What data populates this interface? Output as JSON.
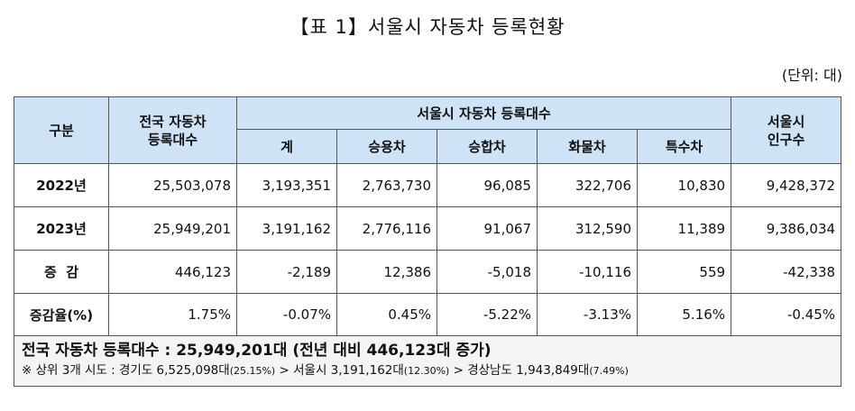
{
  "title": "【표 1】서울시 자동차 등록현황",
  "unit": "(단위: 대)",
  "headers": {
    "category": "구분",
    "national": "전국 자동차\n등록대수",
    "seoul_group": "서울시 자동차 등록대수",
    "seoul_cols": [
      "계",
      "승용차",
      "승합차",
      "화물차",
      "특수차"
    ],
    "population": "서울시\n인구수"
  },
  "rows": [
    {
      "label": "2022년",
      "values": [
        "25,503,078",
        "3,193,351",
        "2,763,730",
        "96,085",
        "322,706",
        "10,830",
        "9,428,372"
      ]
    },
    {
      "label": "2023년",
      "values": [
        "25,949,201",
        "3,191,162",
        "2,776,116",
        "91,067",
        "312,590",
        "11,389",
        "9,386,034"
      ]
    },
    {
      "label": "증  감",
      "values": [
        "446,123",
        "-2,189",
        "12,386",
        "-5,018",
        "-10,116",
        "559",
        "-42,338"
      ]
    },
    {
      "label": "증감율(%)",
      "values": [
        "1.75%",
        "-0.07%",
        "0.45%",
        "-5.22%",
        "-3.13%",
        "5.16%",
        "-0.45%"
      ]
    }
  ],
  "summary": {
    "main": "전국 자동차 등록대수 : 25,949,201대 (전년 대비 446,123대 증가)",
    "sub_parts": [
      {
        "text": "※ 상위 3개 시도 : 경기도 6,525,098대",
        "pct": "(25.15%)"
      },
      {
        "text": " > 서울시 3,191,162대",
        "pct": "(12.30%)"
      },
      {
        "text": " > 경상남도 1,943,849대",
        "pct": "(7.49%)"
      }
    ]
  }
}
